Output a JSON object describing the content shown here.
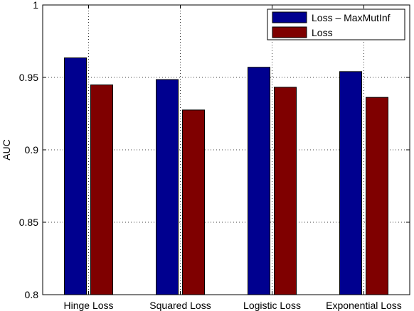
{
  "chart_data": {
    "type": "bar",
    "title": "",
    "xlabel": "",
    "ylabel": "AUC",
    "categories": [
      "Hinge Loss",
      "Squared Loss",
      "Logistic Loss",
      "Exponential Loss"
    ],
    "series": [
      {
        "name": "Loss – MaxMutInf",
        "color": "#00008f",
        "values": [
          0.9635,
          0.9485,
          0.957,
          0.954
        ]
      },
      {
        "name": "Loss",
        "color": "#7f0000",
        "values": [
          0.9448,
          0.9275,
          0.9432,
          0.9362
        ]
      }
    ],
    "ylim": [
      0.8,
      1.0
    ],
    "yticks": [
      0.8,
      0.85,
      0.9,
      0.95,
      1.0
    ],
    "ytick_labels": [
      "0.8",
      "0.85",
      "0.9",
      "0.95",
      "1"
    ],
    "grid": true,
    "legend_position": "top-right"
  }
}
